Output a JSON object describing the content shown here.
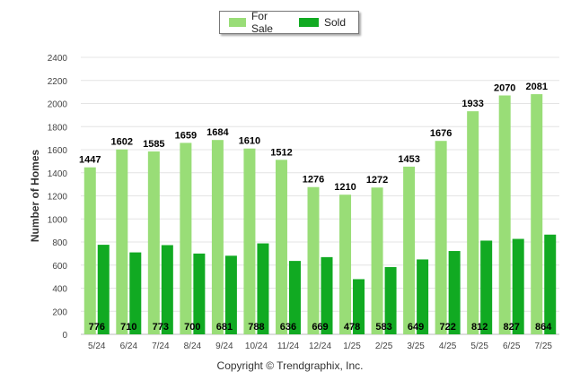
{
  "chart_data": {
    "type": "bar",
    "categories": [
      "5/24",
      "6/24",
      "7/24",
      "8/24",
      "9/24",
      "10/24",
      "11/24",
      "12/24",
      "1/25",
      "2/25",
      "3/25",
      "4/25",
      "5/25",
      "6/25",
      "7/25"
    ],
    "series": [
      {
        "name": "For Sale",
        "color": "#99dd77",
        "values": [
          1447,
          1602,
          1585,
          1659,
          1684,
          1610,
          1512,
          1276,
          1210,
          1272,
          1453,
          1676,
          1933,
          2070,
          2081
        ]
      },
      {
        "name": "Sold",
        "color": "#11aa22",
        "values": [
          776,
          710,
          773,
          700,
          681,
          788,
          636,
          669,
          478,
          583,
          649,
          722,
          812,
          827,
          864
        ]
      }
    ],
    "ylabel": "Number of Homes",
    "ylim": [
      0,
      2400
    ],
    "yticks": [
      0,
      200,
      400,
      600,
      800,
      1000,
      1200,
      1400,
      1600,
      1800,
      2000,
      2200,
      2400
    ],
    "grid": true,
    "legend_position": "top-center"
  },
  "footer": {
    "copyright": "Copyright © Trendgraphix, Inc."
  }
}
